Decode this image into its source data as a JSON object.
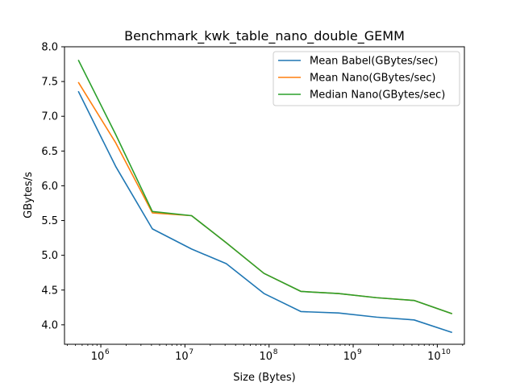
{
  "chart_data": {
    "type": "line",
    "title": "Benchmark_kwk_table_nano_double_GEMM",
    "xlabel": "Size (Bytes)",
    "ylabel": "GBytes/s",
    "xscale": "log",
    "xlim": [
      370000,
      21000000000
    ],
    "ylim": [
      3.72,
      8.0
    ],
    "grid": false,
    "legend_position": "top-right",
    "x": [
      540000,
      1500000,
      4100000,
      12000000,
      31000000,
      87000000,
      240000000,
      670000000,
      1900000000,
      5300000000,
      15000000000
    ],
    "series": [
      {
        "name": "Mean Babel(GBytes/sec)",
        "color": "#1f77b4",
        "values": [
          7.36,
          6.28,
          5.38,
          5.09,
          4.88,
          4.45,
          4.19,
          4.17,
          4.11,
          4.07,
          3.89
        ]
      },
      {
        "name": "Mean Nano(GBytes/sec)",
        "color": "#ff7f0e",
        "values": [
          7.49,
          6.62,
          5.61,
          5.57,
          5.18,
          4.74,
          4.48,
          4.45,
          4.39,
          4.35,
          4.16
        ]
      },
      {
        "name": "Median Nano(GBytes/sec)",
        "color": "#2ca02c",
        "values": [
          7.81,
          6.74,
          5.63,
          5.57,
          5.18,
          4.74,
          4.48,
          4.45,
          4.39,
          4.35,
          4.16
        ]
      }
    ],
    "y_ticks": [
      {
        "value": 4.0,
        "label": "4.0"
      },
      {
        "value": 4.5,
        "label": "4.5"
      },
      {
        "value": 5.0,
        "label": "5.0"
      },
      {
        "value": 5.5,
        "label": "5.5"
      },
      {
        "value": 6.0,
        "label": "6.0"
      },
      {
        "value": 6.5,
        "label": "6.5"
      },
      {
        "value": 7.0,
        "label": "7.0"
      },
      {
        "value": 7.5,
        "label": "7.5"
      },
      {
        "value": 8.0,
        "label": "8.0"
      }
    ],
    "x_major_ticks": [
      {
        "exp": 6,
        "value": 1000000
      },
      {
        "exp": 7,
        "value": 10000000
      },
      {
        "exp": 8,
        "value": 100000000
      },
      {
        "exp": 9,
        "value": 1000000000
      },
      {
        "exp": 10,
        "value": 10000000000
      }
    ]
  }
}
